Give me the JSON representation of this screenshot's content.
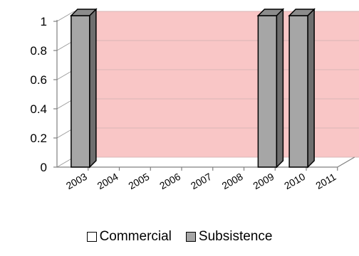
{
  "chart_data": {
    "type": "bar",
    "categories": [
      "2003",
      "2004",
      "2005",
      "2006",
      "2007",
      "2008",
      "2009",
      "2010",
      "2011"
    ],
    "series": [
      {
        "name": "Commercial",
        "values": [
          0,
          0,
          0,
          0,
          0,
          0,
          0,
          0,
          0
        ],
        "color": "#ffffff"
      },
      {
        "name": "Subsistence",
        "values": [
          1,
          0,
          0,
          0,
          0,
          0,
          1,
          1,
          0
        ],
        "color": "#a6a6a6"
      }
    ],
    "y_ticks": [
      "0",
      "0.2",
      "0.4",
      "0.6",
      "0.8",
      "1"
    ],
    "ylim": [
      0,
      1
    ],
    "grid": true,
    "legend_position": "bottom",
    "plot_background": "#f9c6c6",
    "title": "",
    "xlabel": "",
    "ylabel": ""
  }
}
